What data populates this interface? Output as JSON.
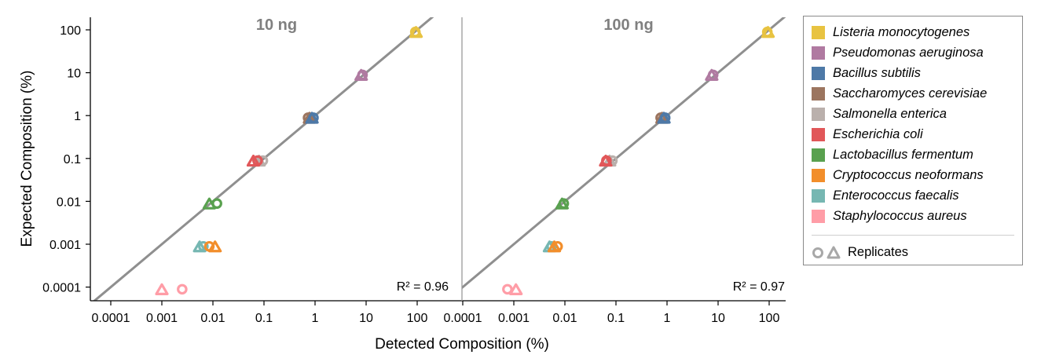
{
  "chart_data": {
    "type": "scatter",
    "xlabel": "Detected Composition (%)",
    "ylabel": "Expected Composition (%)",
    "x_scale": "log",
    "y_scale": "log",
    "xlim": [
      0.0001,
      100
    ],
    "ylim": [
      0.0001,
      100
    ],
    "x_ticks": [
      "0.0001",
      "0.001",
      "0.01",
      "0.1",
      "1",
      "10",
      "100"
    ],
    "y_ticks": [
      "100",
      "10",
      "1",
      "0.1",
      "0.01",
      "0.001",
      "0.0001"
    ],
    "grid": false,
    "legend_position": "right",
    "replicates_label": "Replicates",
    "series": [
      {
        "name": "Listeria monocytogenes",
        "color": "#E8C341",
        "expected": 89.1
      },
      {
        "name": "Pseudomonas aeruginosa",
        "color": "#B07AA1",
        "expected": 8.9
      },
      {
        "name": "Bacillus subtilis",
        "color": "#4E79A7",
        "expected": 0.89
      },
      {
        "name": "Saccharomyces cerevisiae",
        "color": "#9C755F",
        "expected": 0.89
      },
      {
        "name": "Salmonella enterica",
        "color": "#BAB0AC",
        "expected": 0.089
      },
      {
        "name": "Escherichia coli",
        "color": "#E15759",
        "expected": 0.089
      },
      {
        "name": "Lactobacillus fermentum",
        "color": "#59A14F",
        "expected": 0.0089
      },
      {
        "name": "Cryptococcus neoformans",
        "color": "#F28E2B",
        "expected": 0.00089
      },
      {
        "name": "Enterococcus faecalis",
        "color": "#76B7B2",
        "expected": 0.00089
      },
      {
        "name": "Staphylococcus aureus",
        "color": "#FF9DA7",
        "expected": 8.9e-05
      }
    ],
    "panels": [
      {
        "title": "10 ng",
        "r2": "R² = 0.96",
        "points": [
          {
            "species": 0,
            "x": 92,
            "y": 89.1,
            "marker": "circle"
          },
          {
            "species": 0,
            "x": 95,
            "y": 89.1,
            "marker": "triangle"
          },
          {
            "species": 1,
            "x": 8.5,
            "y": 8.9,
            "marker": "circle"
          },
          {
            "species": 1,
            "x": 8.0,
            "y": 8.9,
            "marker": "triangle"
          },
          {
            "species": 3,
            "x": 0.73,
            "y": 0.89,
            "marker": "circle"
          },
          {
            "species": 3,
            "x": 0.78,
            "y": 0.89,
            "marker": "triangle"
          },
          {
            "species": 2,
            "x": 0.93,
            "y": 0.89,
            "marker": "circle"
          },
          {
            "species": 2,
            "x": 0.87,
            "y": 0.89,
            "marker": "triangle"
          },
          {
            "species": 4,
            "x": 0.095,
            "y": 0.089,
            "marker": "circle"
          },
          {
            "species": 4,
            "x": 0.08,
            "y": 0.089,
            "marker": "triangle"
          },
          {
            "species": 5,
            "x": 0.075,
            "y": 0.089,
            "marker": "circle"
          },
          {
            "species": 5,
            "x": 0.062,
            "y": 0.089,
            "marker": "triangle"
          },
          {
            "species": 6,
            "x": 0.012,
            "y": 0.0089,
            "marker": "circle"
          },
          {
            "species": 6,
            "x": 0.0085,
            "y": 0.0089,
            "marker": "triangle"
          },
          {
            "species": 8,
            "x": 0.0065,
            "y": 0.00089,
            "marker": "circle"
          },
          {
            "species": 8,
            "x": 0.0055,
            "y": 0.00089,
            "marker": "triangle"
          },
          {
            "species": 7,
            "x": 0.0085,
            "y": 0.00089,
            "marker": "circle"
          },
          {
            "species": 7,
            "x": 0.011,
            "y": 0.00089,
            "marker": "triangle"
          },
          {
            "species": 9,
            "x": 0.0025,
            "y": 8.9e-05,
            "marker": "circle"
          },
          {
            "species": 9,
            "x": 0.001,
            "y": 8.9e-05,
            "marker": "triangle"
          }
        ]
      },
      {
        "title": "100 ng",
        "r2": "R² = 0.97",
        "points": [
          {
            "species": 0,
            "x": 92,
            "y": 89.1,
            "marker": "circle"
          },
          {
            "species": 0,
            "x": 95,
            "y": 89.1,
            "marker": "triangle"
          },
          {
            "species": 1,
            "x": 8.0,
            "y": 8.9,
            "marker": "circle"
          },
          {
            "species": 1,
            "x": 7.5,
            "y": 8.9,
            "marker": "triangle"
          },
          {
            "species": 3,
            "x": 0.75,
            "y": 0.89,
            "marker": "circle"
          },
          {
            "species": 3,
            "x": 0.8,
            "y": 0.89,
            "marker": "triangle"
          },
          {
            "species": 2,
            "x": 0.92,
            "y": 0.89,
            "marker": "circle"
          },
          {
            "species": 2,
            "x": 0.87,
            "y": 0.89,
            "marker": "triangle"
          },
          {
            "species": 4,
            "x": 0.085,
            "y": 0.089,
            "marker": "circle"
          },
          {
            "species": 4,
            "x": 0.075,
            "y": 0.089,
            "marker": "triangle"
          },
          {
            "species": 5,
            "x": 0.065,
            "y": 0.089,
            "marker": "circle"
          },
          {
            "species": 5,
            "x": 0.063,
            "y": 0.089,
            "marker": "triangle"
          },
          {
            "species": 6,
            "x": 0.0095,
            "y": 0.0089,
            "marker": "circle"
          },
          {
            "species": 6,
            "x": 0.0088,
            "y": 0.0089,
            "marker": "triangle"
          },
          {
            "species": 8,
            "x": 0.0055,
            "y": 0.00089,
            "marker": "circle"
          },
          {
            "species": 8,
            "x": 0.005,
            "y": 0.00089,
            "marker": "triangle"
          },
          {
            "species": 7,
            "x": 0.0072,
            "y": 0.00089,
            "marker": "circle"
          },
          {
            "species": 7,
            "x": 0.0062,
            "y": 0.00089,
            "marker": "triangle"
          },
          {
            "species": 9,
            "x": 0.00075,
            "y": 8.9e-05,
            "marker": "circle"
          },
          {
            "species": 9,
            "x": 0.0011,
            "y": 8.9e-05,
            "marker": "triangle"
          }
        ]
      }
    ],
    "fit_line": {
      "color": "#8f8f8f",
      "relation": "y = x"
    }
  }
}
